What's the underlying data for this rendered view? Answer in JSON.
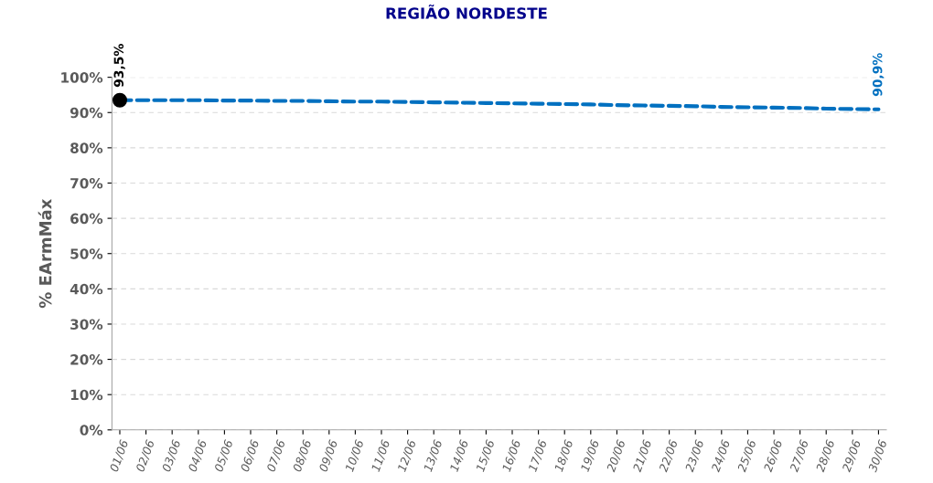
{
  "chart_data": {
    "type": "line",
    "title": "REGIÃO NORDESTE",
    "ylabel": "% EArmMáx",
    "categories": [
      "01/06",
      "02/06",
      "03/06",
      "04/06",
      "05/06",
      "06/06",
      "07/06",
      "08/06",
      "09/06",
      "10/06",
      "11/06",
      "12/06",
      "13/06",
      "14/06",
      "15/06",
      "16/06",
      "17/06",
      "18/06",
      "19/06",
      "20/06",
      "21/06",
      "22/06",
      "23/06",
      "24/06",
      "25/06",
      "26/06",
      "27/06",
      "28/06",
      "29/06",
      "30/06"
    ],
    "series": [
      {
        "color": "#0070c0",
        "line_style": "dashed",
        "marker": "none",
        "values": [
          93.5,
          93.5,
          93.5,
          93.5,
          93.4,
          93.4,
          93.3,
          93.3,
          93.2,
          93.1,
          93.1,
          93.0,
          92.9,
          92.8,
          92.7,
          92.6,
          92.5,
          92.4,
          92.3,
          92.1,
          92.0,
          91.9,
          91.8,
          91.6,
          91.5,
          91.4,
          91.3,
          91.1,
          91.0,
          90.9
        ],
        "value_labels": [
          null,
          null,
          null,
          null,
          null,
          null,
          null,
          null,
          null,
          null,
          null,
          null,
          null,
          null,
          null,
          null,
          null,
          null,
          null,
          null,
          null,
          null,
          null,
          null,
          null,
          null,
          null,
          null,
          null,
          "90,9%"
        ]
      },
      {
        "type": "scatter",
        "color": "#000000",
        "marker": "circle",
        "values": [
          93.5,
          null,
          null,
          null,
          null,
          null,
          null,
          null,
          null,
          null,
          null,
          null,
          null,
          null,
          null,
          null,
          null,
          null,
          null,
          null,
          null,
          null,
          null,
          null,
          null,
          null,
          null,
          null,
          null,
          null
        ],
        "value_labels": [
          "93,5%",
          null,
          null,
          null,
          null,
          null,
          null,
          null,
          null,
          null,
          null,
          null,
          null,
          null,
          null,
          null,
          null,
          null,
          null,
          null,
          null,
          null,
          null,
          null,
          null,
          null,
          null,
          null,
          null,
          null
        ]
      }
    ],
    "ylim": [
      0,
      100
    ],
    "yticks": [
      {
        "value": 0,
        "label": "0%"
      },
      {
        "value": 10,
        "label": "10%"
      },
      {
        "value": 20,
        "label": "20%"
      },
      {
        "value": 30,
        "label": "30%"
      },
      {
        "value": 40,
        "label": "40%"
      },
      {
        "value": 50,
        "label": "50%"
      },
      {
        "value": 60,
        "label": "60%"
      },
      {
        "value": 70,
        "label": "70%"
      },
      {
        "value": 80,
        "label": "80%"
      },
      {
        "value": 90,
        "label": "90%"
      },
      {
        "value": 100,
        "label": "100%"
      }
    ],
    "grid": "y",
    "legend": false
  }
}
